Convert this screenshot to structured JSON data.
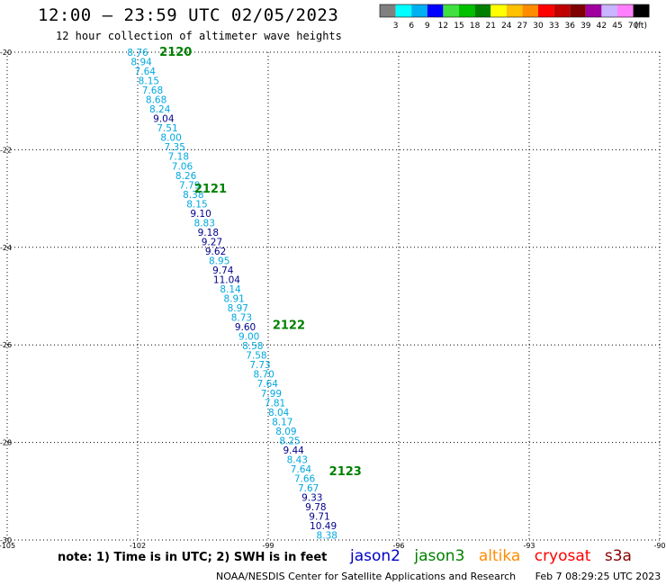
{
  "header": {
    "title": "12:00 — 23:59 UTC 02/05/2023",
    "subtitle": "12 hour collection of altimeter wave heights"
  },
  "legend": {
    "swatches": [
      "#808080",
      "#00ffff",
      "#00b0f0",
      "#0000ff",
      "#40e040",
      "#00c000",
      "#008000",
      "#ffff00",
      "#ffc000",
      "#ff8c00",
      "#ff0000",
      "#c00000",
      "#800000",
      "#a000a0",
      "#c8b4ff",
      "#ff80ff",
      "#000000"
    ],
    "labels": [
      "3",
      "6",
      "9",
      "12",
      "15",
      "18",
      "21",
      "24",
      "27",
      "30",
      "33",
      "36",
      "39",
      "42",
      "45",
      "70"
    ],
    "unit": "(ft)"
  },
  "map": {
    "lon_range": [
      -105,
      -90
    ],
    "lat_range": [
      -30,
      -20
    ],
    "lon_ticks": [
      "-105",
      "-102",
      "-99",
      "-96",
      "-93",
      "-90"
    ],
    "lat_ticks": [
      "-20",
      "-22",
      "-24",
      "-26",
      "-28",
      "-30"
    ],
    "colors": {
      "jason2": "#0000c8",
      "jason3": "#008000",
      "altika": "#ff8c00",
      "cryosat": "#ff0000",
      "s3a": "#8b0000",
      "light": "#00a8e0",
      "dark": "#00008b"
    },
    "tracks": [
      {
        "label": "2120",
        "lat": -20.0,
        "lon": -101.5
      },
      {
        "label": "2121",
        "lat": -22.8,
        "lon": -100.7
      },
      {
        "label": "2122",
        "lat": -25.6,
        "lon": -98.9
      },
      {
        "label": "2123",
        "lat": -28.6,
        "lon": -97.6
      }
    ],
    "points": [
      {
        "v": "8.76",
        "c": "light"
      },
      {
        "v": "8.94",
        "c": "light"
      },
      {
        "v": "7.64",
        "c": "light"
      },
      {
        "v": "8.15",
        "c": "light"
      },
      {
        "v": "7.68",
        "c": "light"
      },
      {
        "v": "8.68",
        "c": "light"
      },
      {
        "v": "8.24",
        "c": "light"
      },
      {
        "v": "9.04",
        "c": "dark"
      },
      {
        "v": "7.51",
        "c": "light"
      },
      {
        "v": "8.00",
        "c": "light"
      },
      {
        "v": "7.35",
        "c": "light"
      },
      {
        "v": "7.18",
        "c": "light"
      },
      {
        "v": "7.06",
        "c": "light"
      },
      {
        "v": "8.26",
        "c": "light"
      },
      {
        "v": "7.79",
        "c": "light"
      },
      {
        "v": "8.38",
        "c": "light"
      },
      {
        "v": "8.15",
        "c": "light"
      },
      {
        "v": "9.10",
        "c": "dark"
      },
      {
        "v": "8.83",
        "c": "light"
      },
      {
        "v": "9.18",
        "c": "dark"
      },
      {
        "v": "9.27",
        "c": "dark"
      },
      {
        "v": "9.62",
        "c": "dark"
      },
      {
        "v": "8.95",
        "c": "light"
      },
      {
        "v": "9.74",
        "c": "dark"
      },
      {
        "v": "11.04",
        "c": "dark"
      },
      {
        "v": "8.14",
        "c": "light"
      },
      {
        "v": "8.91",
        "c": "light"
      },
      {
        "v": "8.97",
        "c": "light"
      },
      {
        "v": "8.73",
        "c": "light"
      },
      {
        "v": "9.60",
        "c": "dark"
      },
      {
        "v": "9.00",
        "c": "light"
      },
      {
        "v": "8.58",
        "c": "light"
      },
      {
        "v": "7.58",
        "c": "light"
      },
      {
        "v": "7.73",
        "c": "light"
      },
      {
        "v": "8.70",
        "c": "light"
      },
      {
        "v": "7.64",
        "c": "light"
      },
      {
        "v": "7.99",
        "c": "light"
      },
      {
        "v": "7.81",
        "c": "light"
      },
      {
        "v": "8.04",
        "c": "light"
      },
      {
        "v": "8.17",
        "c": "light"
      },
      {
        "v": "8.09",
        "c": "light"
      },
      {
        "v": "8.25",
        "c": "light"
      },
      {
        "v": "9.44",
        "c": "dark"
      },
      {
        "v": "8.43",
        "c": "light"
      },
      {
        "v": "7.64",
        "c": "light"
      },
      {
        "v": "7.66",
        "c": "light"
      },
      {
        "v": "7.67",
        "c": "light"
      },
      {
        "v": "9.33",
        "c": "dark"
      },
      {
        "v": "9.78",
        "c": "dark"
      },
      {
        "v": "9.71",
        "c": "dark"
      },
      {
        "v": "10.49",
        "c": "dark"
      },
      {
        "v": "8.38",
        "c": "light"
      }
    ]
  },
  "footer": {
    "note": "note: 1) Time is in UTC; 2) SWH is in feet",
    "satellites": [
      {
        "name": "jason2",
        "color": "#0000c8"
      },
      {
        "name": "jason3",
        "color": "#008000"
      },
      {
        "name": "altika",
        "color": "#ff8c00"
      },
      {
        "name": "cryosat",
        "color": "#ff0000"
      },
      {
        "name": "s3a",
        "color": "#8b0000"
      }
    ],
    "credit_org": "NOAA/NESDIS Center for Satellite Applications and Research",
    "credit_time": "Feb  7 08:29:25 UTC 2023"
  }
}
